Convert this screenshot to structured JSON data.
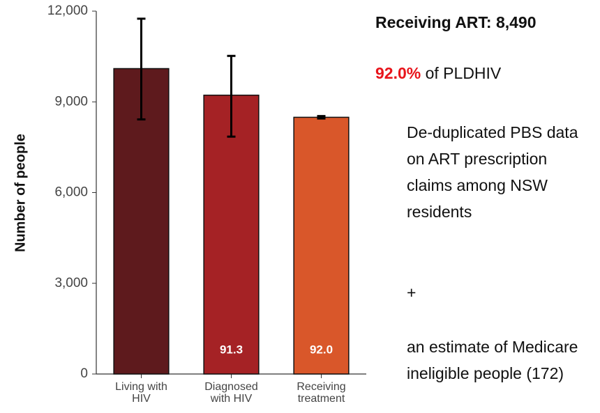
{
  "chart_data": {
    "type": "bar",
    "ylabel": "Number of people",
    "categories": [
      [
        "Living with",
        "HIV"
      ],
      [
        "Diagnosed",
        "with HIV"
      ],
      [
        "Receiving",
        "treatment"
      ]
    ],
    "values": [
      10100,
      9221,
      8490
    ],
    "error_lower": [
      8420,
      7850,
      8450
    ],
    "error_upper": [
      11750,
      10520,
      8530
    ],
    "colors": [
      "#5e1a1d",
      "#a52225",
      "#d9572a"
    ],
    "bar_labels": [
      null,
      "91.3",
      "92.0"
    ],
    "ylim": [
      0,
      12000
    ],
    "yticks": [
      {
        "value": 0,
        "label": "0"
      },
      {
        "value": 3000,
        "label": "3,000"
      },
      {
        "value": 6000,
        "label": "6,000"
      },
      {
        "value": 9000,
        "label": "9,000"
      },
      {
        "value": 12000,
        "label": "12,000"
      }
    ]
  },
  "side_panel": {
    "heading": "Receiving ART: 8,490",
    "highlight": "92.0%",
    "highlight_rest": "of PLDHIV",
    "paragraph1": "De-duplicated PBS data on ART prescription claims among NSW residents",
    "plus": "+",
    "paragraph2": "an estimate of Medicare ineligible people (172)"
  }
}
